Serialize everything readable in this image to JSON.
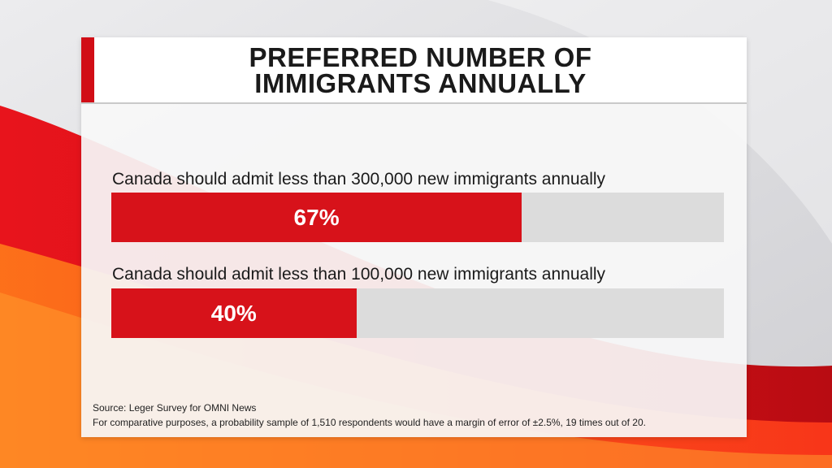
{
  "title": {
    "line1": "PREFERRED NUMBER OF",
    "line2": "IMMIGRANTS ANNUALLY"
  },
  "colors": {
    "bar": "#d7121a",
    "track": "#dcdcdc",
    "accent": "#d10d16"
  },
  "chart_data": {
    "type": "bar",
    "orientation": "horizontal",
    "title": "PREFERRED NUMBER OF IMMIGRANTS ANNUALLY",
    "categories": [
      "Canada should admit less than 300,000 new immigrants annually",
      "Canada should admit less than 100,000 new immigrants annually"
    ],
    "values": [
      67,
      40
    ],
    "value_labels": [
      "67%",
      "40%"
    ],
    "xlim": [
      0,
      100
    ],
    "unit": "%"
  },
  "footnote": {
    "source": "Source: Leger Survey for OMNI News",
    "note": "For comparative purposes, a probability sample of 1,510 respondents would have a margin of error of ±2.5%, 19 times out of 20."
  }
}
